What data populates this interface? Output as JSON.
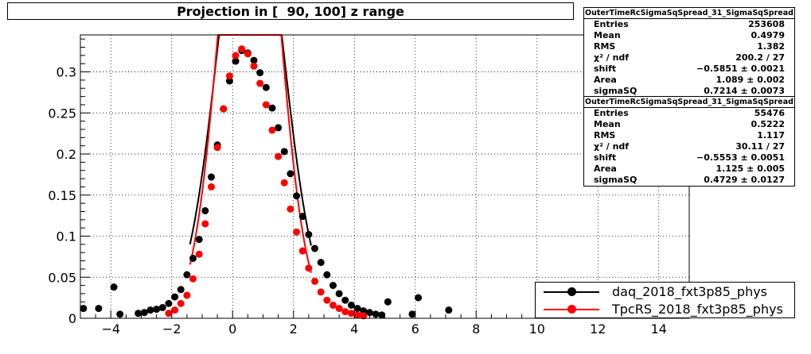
{
  "title": "Projection in [  90, 100] z range",
  "stats": [
    {
      "name": "OuterTimeRcSigmaSqSpread_31_SigmaSqSpread",
      "rows": [
        {
          "label": "Entries",
          "value": "253608"
        },
        {
          "label": "Mean",
          "value": "0.4979"
        },
        {
          "label": "RMS",
          "value": "1.382"
        },
        {
          "label": "χ² / ndf",
          "value": "200.2 / 27"
        },
        {
          "label": "shift",
          "value": "−0.5851 ± 0.0021"
        },
        {
          "label": "Area",
          "value": "1.089 ± 0.002"
        },
        {
          "label": "sigmaSQ",
          "value": "0.7214 ± 0.0073"
        }
      ]
    },
    {
      "name": "OuterTimeRcSigmaSqSpread_31_SigmaSqSpread",
      "rows": [
        {
          "label": "Entries",
          "value": "55476"
        },
        {
          "label": "Mean",
          "value": "0.5222"
        },
        {
          "label": "RMS",
          "value": "1.117"
        },
        {
          "label": "χ² / ndf",
          "value": "30.11 / 27"
        },
        {
          "label": "shift",
          "value": "−0.5553 ± 0.0051"
        },
        {
          "label": "Area",
          "value": "1.125 ± 0.005"
        },
        {
          "label": "sigmaSQ",
          "value": "0.4729 ± 0.0127"
        }
      ]
    }
  ],
  "legend": [
    {
      "label": "daq_2018_fxt3p85_phys",
      "color": "#000000"
    },
    {
      "label": "TpcRS_2018_fxt3p85_phys",
      "color": "#ff0000"
    }
  ],
  "chart_data": {
    "type": "scatter",
    "title": "Projection in [  90, 100] z range",
    "xlim": [
      -5,
      15
    ],
    "ylim": [
      0,
      0.345
    ],
    "x_ticks": [
      -4,
      -2,
      0,
      2,
      4,
      6,
      8,
      10,
      12,
      14
    ],
    "x_tick_labels": [
      "−4",
      "−2",
      "0",
      "2",
      "4",
      "6",
      "8",
      "10",
      "12",
      "14"
    ],
    "y_ticks": [
      0,
      0.05,
      0.1,
      0.15,
      0.2,
      0.25,
      0.3
    ],
    "y_tick_labels": [
      "0",
      "0.05",
      "0.1",
      "0.15",
      "0.2",
      "0.25",
      "0.3"
    ],
    "grid": true,
    "legend_position": "bottom-right",
    "series": [
      {
        "name": "daq_2018_fxt3p85_phys",
        "color": "#000000",
        "x": [
          -4.9,
          -4.4,
          -3.9,
          -3.7,
          -3.1,
          -2.9,
          -2.7,
          -2.5,
          -2.3,
          -2.1,
          -1.9,
          -1.7,
          -1.5,
          -1.3,
          -1.1,
          -0.9,
          -0.7,
          -0.5,
          -0.3,
          -0.1,
          0.1,
          0.3,
          0.5,
          0.7,
          0.9,
          1.1,
          1.3,
          1.5,
          1.7,
          1.9,
          2.1,
          2.3,
          2.5,
          2.7,
          2.9,
          3.1,
          3.3,
          3.5,
          3.7,
          3.9,
          4.1,
          4.3,
          4.5,
          4.7,
          4.9,
          5.1,
          5.9,
          6.1,
          7.1
        ],
        "y": [
          0.012,
          0.012,
          0.038,
          0.005,
          0.006,
          0.007,
          0.01,
          0.011,
          0.013,
          0.018,
          0.026,
          0.035,
          0.053,
          0.073,
          0.096,
          0.131,
          0.172,
          0.211,
          0.255,
          0.289,
          0.313,
          0.326,
          0.323,
          0.314,
          0.299,
          0.281,
          0.256,
          0.232,
          0.203,
          0.176,
          0.149,
          0.124,
          0.102,
          0.085,
          0.068,
          0.053,
          0.04,
          0.03,
          0.022,
          0.016,
          0.012,
          0.009,
          0.007,
          0.005,
          0.004,
          0.02,
          0.005,
          0.025,
          0.01
        ]
      },
      {
        "name": "TpcRS_2018_fxt3p85_phys",
        "color": "#ff0000",
        "x": [
          -2.1,
          -1.9,
          -1.7,
          -1.5,
          -1.3,
          -1.1,
          -0.9,
          -0.7,
          -0.5,
          -0.3,
          -0.1,
          0.1,
          0.3,
          0.5,
          0.7,
          0.9,
          1.1,
          1.3,
          1.5,
          1.7,
          1.9,
          2.1,
          2.3,
          2.5,
          2.7,
          2.9,
          3.1,
          3.3,
          3.5,
          3.7,
          3.9,
          4.1,
          4.3
        ],
        "y": [
          0.006,
          0.01,
          0.018,
          0.028,
          0.048,
          0.078,
          0.115,
          0.16,
          0.208,
          0.255,
          0.295,
          0.32,
          0.328,
          0.322,
          0.307,
          0.286,
          0.26,
          0.229,
          0.197,
          0.165,
          0.133,
          0.105,
          0.082,
          0.061,
          0.045,
          0.032,
          0.022,
          0.016,
          0.012,
          0.008,
          0.006,
          0.004,
          0.003
        ]
      }
    ]
  }
}
